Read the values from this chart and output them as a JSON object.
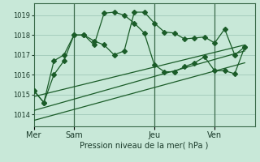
{
  "background_color": "#c8e8d8",
  "grid_color": "#a0c8b8",
  "line_color": "#1a5c28",
  "vline_color": "#3a6a4a",
  "ylabel_text": "Pression niveau de la mer( hPa )",
  "x_ticks_labels": [
    "Mer",
    "Sam",
    "Jeu",
    "Ven"
  ],
  "x_ticks_pos": [
    0,
    4,
    12,
    18
  ],
  "ylim": [
    1013.4,
    1019.6
  ],
  "xlim": [
    0,
    22
  ],
  "yticks": [
    1014,
    1015,
    1016,
    1017,
    1018,
    1019
  ],
  "line1_x": [
    0,
    1,
    2,
    3,
    4,
    5,
    6,
    7,
    8,
    9,
    10,
    11,
    12,
    13,
    14,
    15,
    16,
    17,
    18,
    19,
    20,
    21
  ],
  "line1_y": [
    1015.2,
    1014.6,
    1016.7,
    1017.0,
    1018.0,
    1018.0,
    1017.7,
    1017.5,
    1017.0,
    1017.2,
    1019.15,
    1019.15,
    1018.6,
    1018.15,
    1018.1,
    1017.8,
    1017.85,
    1017.9,
    1017.6,
    1018.3,
    1017.0,
    1017.4
  ],
  "line2_x": [
    0,
    1,
    2,
    3,
    4,
    5,
    6,
    7,
    8,
    9,
    10,
    11,
    12,
    13,
    14,
    15,
    16,
    17,
    18,
    19,
    20,
    21
  ],
  "line2_y": [
    1015.2,
    1014.6,
    1016.0,
    1016.7,
    1018.0,
    1018.0,
    1017.5,
    1019.1,
    1019.15,
    1019.0,
    1018.6,
    1018.1,
    1016.5,
    1016.15,
    1016.15,
    1016.4,
    1016.6,
    1016.9,
    1016.2,
    1016.2,
    1016.05,
    1017.4
  ],
  "line3_x": [
    0,
    21
  ],
  "line3_y": [
    1014.9,
    1017.5
  ],
  "line4_x": [
    0,
    21
  ],
  "line4_y": [
    1014.2,
    1017.2
  ],
  "line5_x": [
    0,
    21
  ],
  "line5_y": [
    1013.7,
    1016.6
  ],
  "vline_x": [
    4,
    12,
    18
  ],
  "marker": "D",
  "marker_size": 3
}
